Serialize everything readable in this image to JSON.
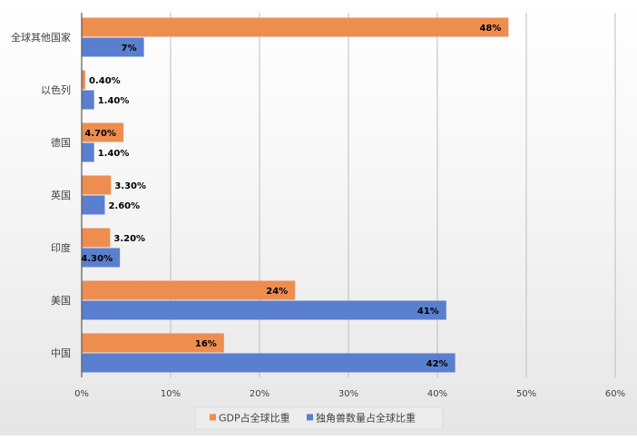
{
  "chart_data": {
    "type": "bar",
    "orientation": "horizontal",
    "categories": [
      "全球其他国家",
      "以色列",
      "德国",
      "英国",
      "印度",
      "美国",
      "中国"
    ],
    "series": [
      {
        "name": "GDP占全球比重",
        "color": "#ED8D4F",
        "values": [
          48,
          0.4,
          4.7,
          3.3,
          3.2,
          24,
          16
        ],
        "labels": [
          "48%",
          "0.40%",
          "4.70%",
          "3.30%",
          "3.20%",
          "24%",
          "16%"
        ]
      },
      {
        "name": "独角兽数量占全球比重",
        "color": "#5B7FCF",
        "values": [
          7,
          1.4,
          1.4,
          2.6,
          4.3,
          41,
          42
        ],
        "labels": [
          "7%",
          "1.40%",
          "1.40%",
          "2.60%",
          "4.30%",
          "41%",
          "42%"
        ]
      }
    ],
    "xlim": [
      0,
      60
    ],
    "x_ticks": [
      0,
      10,
      20,
      30,
      40,
      50,
      60
    ],
    "x_tick_labels": [
      "0%",
      "10%",
      "20%",
      "30%",
      "40%",
      "50%",
      "60%"
    ],
    "grid": "vertical",
    "legend_position": "bottom"
  }
}
